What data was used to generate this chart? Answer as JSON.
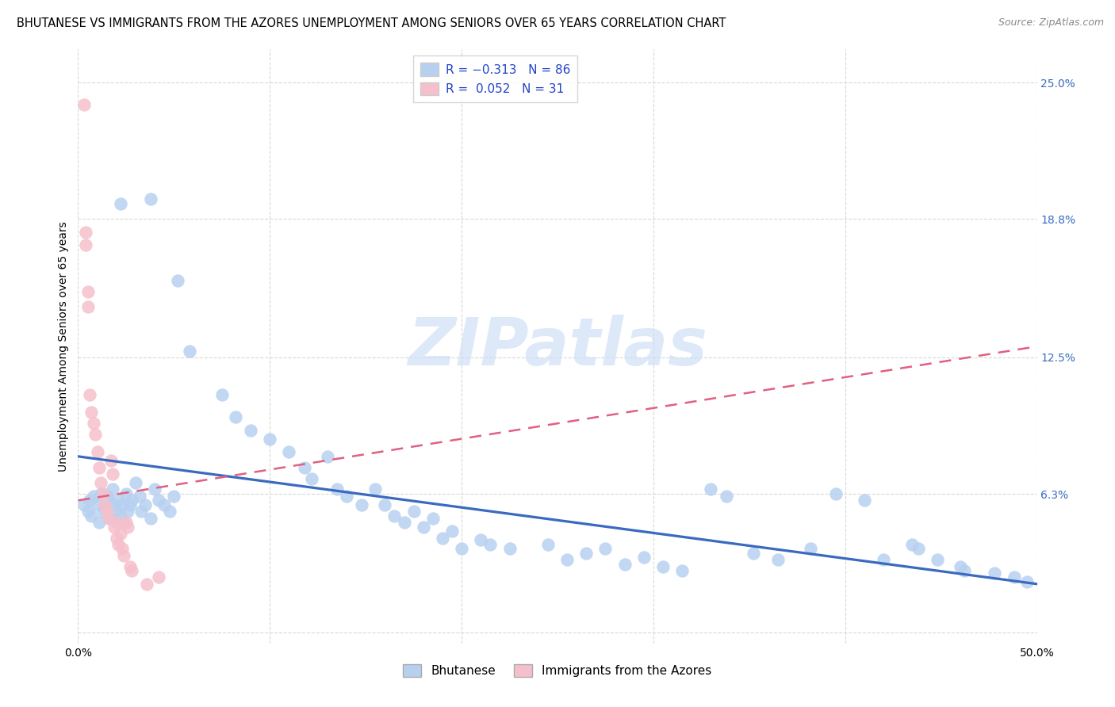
{
  "title": "BHUTANESE VS IMMIGRANTS FROM THE AZORES UNEMPLOYMENT AMONG SENIORS OVER 65 YEARS CORRELATION CHART",
  "source": "Source: ZipAtlas.com",
  "ylabel": "Unemployment Among Seniors over 65 years",
  "xmin": 0.0,
  "xmax": 0.5,
  "ymin": -0.005,
  "ymax": 0.265,
  "ytick_vals": [
    0.0,
    0.063,
    0.125,
    0.188,
    0.25
  ],
  "ytick_labels_right": [
    "",
    "6.3%",
    "12.5%",
    "18.8%",
    "25.0%"
  ],
  "xtick_vals": [
    0.0,
    0.1,
    0.2,
    0.3,
    0.4,
    0.5
  ],
  "xtick_labels": [
    "0.0%",
    "",
    "",
    "",
    "",
    "50.0%"
  ],
  "legend_bottom": [
    "Bhutanese",
    "Immigrants from the Azores"
  ],
  "watermark": "ZIPatlas",
  "blue_color": "#b8d0f0",
  "pink_color": "#f5c0cc",
  "blue_line_color": "#3a6abf",
  "pink_line_color": "#e06080",
  "grid_color": "#d8d8d8",
  "bg_color": "#ffffff",
  "title_fontsize": 10.5,
  "tick_fontsize": 10,
  "ylabel_fontsize": 10,
  "blue_line": [
    0.0,
    0.08,
    0.5,
    0.022
  ],
  "pink_line": [
    0.0,
    0.06,
    0.5,
    0.13
  ],
  "blue_scatter": [
    [
      0.003,
      0.058
    ],
    [
      0.005,
      0.055
    ],
    [
      0.006,
      0.06
    ],
    [
      0.007,
      0.053
    ],
    [
      0.008,
      0.062
    ],
    [
      0.01,
      0.058
    ],
    [
      0.011,
      0.05
    ],
    [
      0.012,
      0.063
    ],
    [
      0.013,
      0.055
    ],
    [
      0.014,
      0.058
    ],
    [
      0.015,
      0.062
    ],
    [
      0.016,
      0.06
    ],
    [
      0.017,
      0.052
    ],
    [
      0.018,
      0.065
    ],
    [
      0.019,
      0.058
    ],
    [
      0.02,
      0.055
    ],
    [
      0.021,
      0.06
    ],
    [
      0.022,
      0.053
    ],
    [
      0.023,
      0.058
    ],
    [
      0.024,
      0.05
    ],
    [
      0.025,
      0.063
    ],
    [
      0.026,
      0.055
    ],
    [
      0.027,
      0.058
    ],
    [
      0.028,
      0.06
    ],
    [
      0.03,
      0.068
    ],
    [
      0.032,
      0.062
    ],
    [
      0.033,
      0.055
    ],
    [
      0.035,
      0.058
    ],
    [
      0.038,
      0.052
    ],
    [
      0.04,
      0.065
    ],
    [
      0.042,
      0.06
    ],
    [
      0.045,
      0.058
    ],
    [
      0.048,
      0.055
    ],
    [
      0.05,
      0.062
    ],
    [
      0.022,
      0.195
    ],
    [
      0.038,
      0.197
    ],
    [
      0.052,
      0.16
    ],
    [
      0.058,
      0.128
    ],
    [
      0.075,
      0.108
    ],
    [
      0.082,
      0.098
    ],
    [
      0.09,
      0.092
    ],
    [
      0.1,
      0.088
    ],
    [
      0.11,
      0.082
    ],
    [
      0.118,
      0.075
    ],
    [
      0.122,
      0.07
    ],
    [
      0.13,
      0.08
    ],
    [
      0.135,
      0.065
    ],
    [
      0.14,
      0.062
    ],
    [
      0.148,
      0.058
    ],
    [
      0.155,
      0.065
    ],
    [
      0.16,
      0.058
    ],
    [
      0.165,
      0.053
    ],
    [
      0.17,
      0.05
    ],
    [
      0.175,
      0.055
    ],
    [
      0.18,
      0.048
    ],
    [
      0.185,
      0.052
    ],
    [
      0.19,
      0.043
    ],
    [
      0.195,
      0.046
    ],
    [
      0.2,
      0.038
    ],
    [
      0.21,
      0.042
    ],
    [
      0.215,
      0.04
    ],
    [
      0.225,
      0.038
    ],
    [
      0.245,
      0.04
    ],
    [
      0.255,
      0.033
    ],
    [
      0.265,
      0.036
    ],
    [
      0.275,
      0.038
    ],
    [
      0.285,
      0.031
    ],
    [
      0.295,
      0.034
    ],
    [
      0.305,
      0.03
    ],
    [
      0.315,
      0.028
    ],
    [
      0.33,
      0.065
    ],
    [
      0.338,
      0.062
    ],
    [
      0.352,
      0.036
    ],
    [
      0.365,
      0.033
    ],
    [
      0.382,
      0.038
    ],
    [
      0.395,
      0.063
    ],
    [
      0.41,
      0.06
    ],
    [
      0.42,
      0.033
    ],
    [
      0.435,
      0.04
    ],
    [
      0.438,
      0.038
    ],
    [
      0.448,
      0.033
    ],
    [
      0.46,
      0.03
    ],
    [
      0.462,
      0.028
    ],
    [
      0.478,
      0.027
    ],
    [
      0.488,
      0.025
    ],
    [
      0.495,
      0.023
    ]
  ],
  "pink_scatter": [
    [
      0.003,
      0.24
    ],
    [
      0.004,
      0.182
    ],
    [
      0.004,
      0.176
    ],
    [
      0.005,
      0.155
    ],
    [
      0.005,
      0.148
    ],
    [
      0.006,
      0.108
    ],
    [
      0.007,
      0.1
    ],
    [
      0.008,
      0.095
    ],
    [
      0.009,
      0.09
    ],
    [
      0.01,
      0.082
    ],
    [
      0.011,
      0.075
    ],
    [
      0.012,
      0.068
    ],
    [
      0.013,
      0.063
    ],
    [
      0.014,
      0.058
    ],
    [
      0.015,
      0.055
    ],
    [
      0.016,
      0.052
    ],
    [
      0.017,
      0.078
    ],
    [
      0.018,
      0.072
    ],
    [
      0.019,
      0.048
    ],
    [
      0.02,
      0.05
    ],
    [
      0.02,
      0.043
    ],
    [
      0.021,
      0.04
    ],
    [
      0.022,
      0.045
    ],
    [
      0.023,
      0.038
    ],
    [
      0.024,
      0.035
    ],
    [
      0.025,
      0.05
    ],
    [
      0.026,
      0.048
    ],
    [
      0.027,
      0.03
    ],
    [
      0.028,
      0.028
    ],
    [
      0.036,
      0.022
    ],
    [
      0.042,
      0.025
    ]
  ]
}
